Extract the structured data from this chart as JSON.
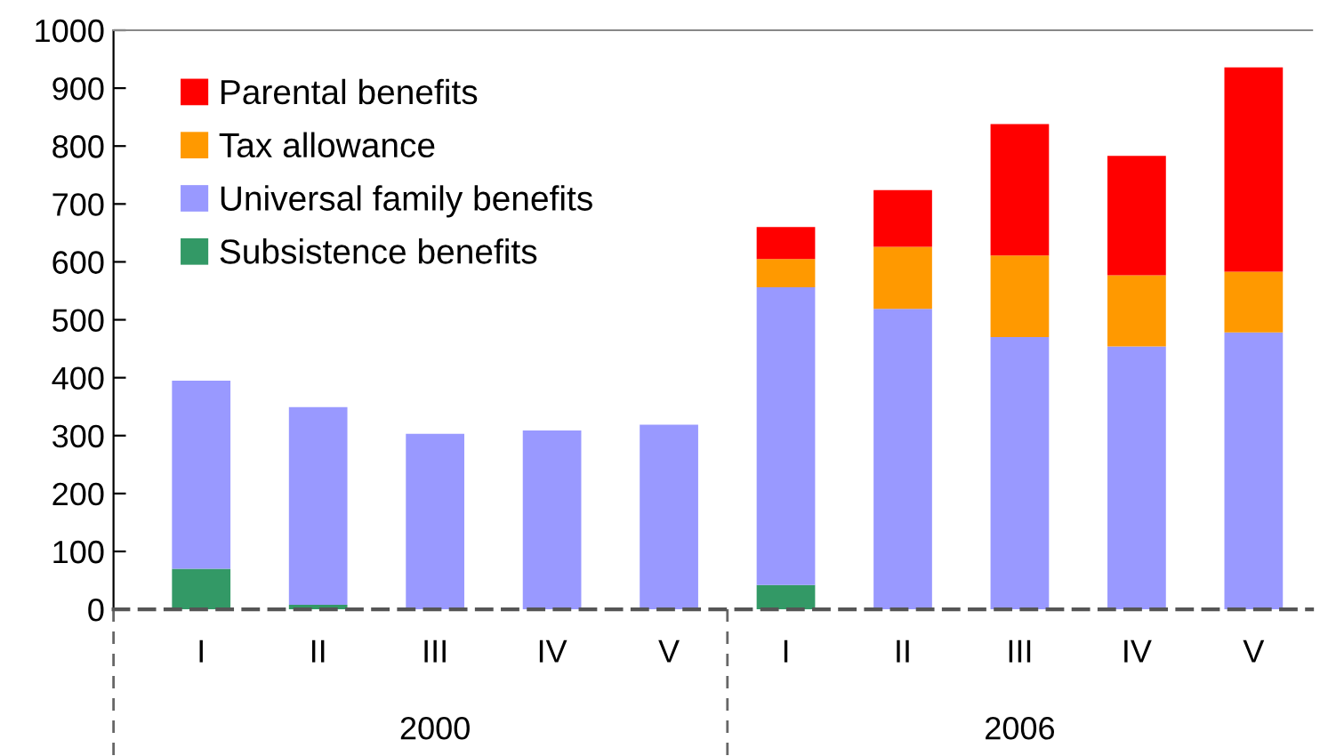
{
  "chart_data": {
    "type": "bar",
    "stacked": true,
    "categories": [
      "I",
      "II",
      "III",
      "IV",
      "V",
      "I",
      "II",
      "III",
      "IV",
      "V"
    ],
    "series": [
      {
        "name": "Subsistence benefits",
        "color": "#339966",
        "values": [
          70,
          8,
          0,
          0,
          0,
          42,
          0,
          0,
          0,
          0
        ]
      },
      {
        "name": "Universal family benefits",
        "color": "#9999ff",
        "values": [
          325,
          341,
          303,
          309,
          319,
          514,
          519,
          470,
          454,
          478
        ]
      },
      {
        "name": "Tax allowance",
        "color": "#ff9900",
        "values": [
          0,
          0,
          0,
          0,
          0,
          49,
          107,
          141,
          123,
          105
        ]
      },
      {
        "name": "Parental benefits",
        "color": "#ff0000",
        "values": [
          0,
          0,
          0,
          0,
          0,
          55,
          98,
          227,
          206,
          353
        ]
      }
    ],
    "ylim": [
      0,
      1000
    ],
    "yticks": [
      0,
      100,
      200,
      300,
      400,
      500,
      600,
      700,
      800,
      900,
      1000
    ],
    "grid": false,
    "legend": "top left",
    "annotations": [
      "2000",
      "2006"
    ]
  }
}
